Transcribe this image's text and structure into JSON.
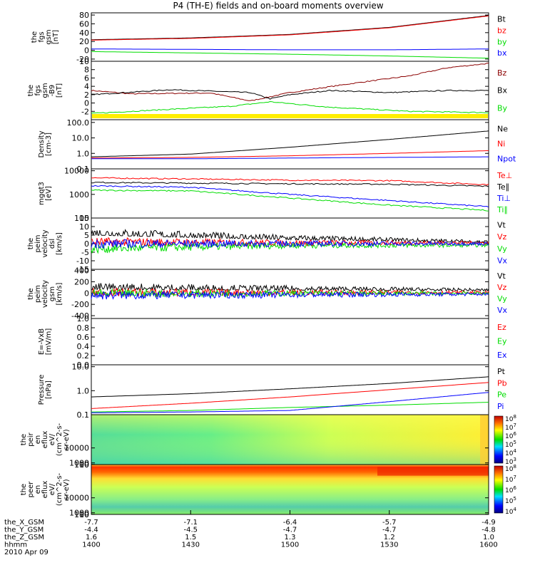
{
  "title": "P4 (TH-E) fields and on-board moments overview",
  "colors": {
    "black": "#000000",
    "red": "#ff0000",
    "darkred": "#8b0000",
    "green": "#00dd00",
    "blue": "#0000ff",
    "yellow": "#ffee00"
  },
  "chart_data": [
    {
      "type": "line",
      "id": "fgs",
      "ylabel": [
        "the",
        "fgs",
        "gsm",
        "[nT]"
      ],
      "ylim": [
        -25,
        85
      ],
      "ticks": [
        {
          "v": 80,
          "t": "80"
        },
        {
          "v": 60,
          "t": "60"
        },
        {
          "v": 40,
          "t": "40"
        },
        {
          "v": 20,
          "t": "20"
        },
        {
          "v": 0,
          "t": "0"
        },
        {
          "v": -20,
          "t": "-20"
        }
      ],
      "series": [
        {
          "name": "Bt",
          "color": "black",
          "values": [
            [
              0,
              24
            ],
            [
              0.25,
              28
            ],
            [
              0.5,
              36
            ],
            [
              0.75,
              52
            ],
            [
              1,
              79
            ]
          ]
        },
        {
          "name": "bz",
          "color": "red",
          "values": [
            [
              0,
              23
            ],
            [
              0.25,
              27
            ],
            [
              0.5,
              35
            ],
            [
              0.75,
              51
            ],
            [
              1,
              78
            ]
          ]
        },
        {
          "name": "by",
          "color": "green",
          "values": [
            [
              0,
              -3
            ],
            [
              0.25,
              -6
            ],
            [
              0.5,
              -9
            ],
            [
              0.75,
              -13
            ],
            [
              1,
              -18
            ]
          ]
        },
        {
          "name": "bx",
          "color": "blue",
          "values": [
            [
              0,
              3
            ],
            [
              0.25,
              2
            ],
            [
              0.5,
              1
            ],
            [
              0.75,
              1
            ],
            [
              1,
              3
            ]
          ]
        }
      ]
    },
    {
      "type": "line",
      "id": "fgs2",
      "ylabel": [
        "the",
        "fgs",
        "gsm",
        "-B9",
        "[nT]"
      ],
      "ylim": [
        -4,
        10
      ],
      "ticks": [
        {
          "v": 10,
          "t": "10"
        },
        {
          "v": 8,
          "t": "8"
        },
        {
          "v": 6,
          "t": "6"
        },
        {
          "v": 4,
          "t": "4"
        },
        {
          "v": 2,
          "t": "2"
        },
        {
          "v": 0,
          "t": "0"
        },
        {
          "v": -2,
          "t": "-2"
        }
      ],
      "series": [
        {
          "name": "Bz",
          "color": "darkred",
          "values": [
            [
              0,
              3
            ],
            [
              0.1,
              2.2
            ],
            [
              0.3,
              2.4
            ],
            [
              0.4,
              0.5
            ],
            [
              0.5,
              2.5
            ],
            [
              0.65,
              4.6
            ],
            [
              0.8,
              6.5
            ],
            [
              0.9,
              8.5
            ],
            [
              1,
              9.5
            ]
          ]
        },
        {
          "name": "Bx",
          "color": "black",
          "values": [
            [
              0,
              2
            ],
            [
              0.2,
              3.2
            ],
            [
              0.4,
              2.5
            ],
            [
              0.45,
              1
            ],
            [
              0.5,
              2
            ],
            [
              0.6,
              3
            ],
            [
              0.75,
              2.5
            ],
            [
              0.9,
              3
            ],
            [
              1,
              3
            ]
          ]
        },
        {
          "name": "By",
          "color": "green",
          "values": [
            [
              0,
              -2.5
            ],
            [
              0.2,
              -1.5
            ],
            [
              0.35,
              -0.8
            ],
            [
              0.45,
              0.3
            ],
            [
              0.6,
              -1
            ],
            [
              0.8,
              -2
            ],
            [
              1,
              -2.3
            ]
          ]
        }
      ],
      "bar_color": "yellow"
    },
    {
      "type": "line",
      "id": "dens",
      "log": true,
      "ylabel": [
        "Density",
        "[cm-3]"
      ],
      "ylim": [
        0.1,
        150
      ],
      "ticks": [
        {
          "v": 100,
          "t": "100.0"
        },
        {
          "v": 10,
          "t": "10.0"
        },
        {
          "v": 1,
          "t": "1.0"
        },
        {
          "v": 0.1,
          "t": "0.1"
        }
      ],
      "series": [
        {
          "name": "Ne",
          "color": "black",
          "values": [
            [
              0,
              0.6
            ],
            [
              0.25,
              0.9
            ],
            [
              0.5,
              2.5
            ],
            [
              0.75,
              8
            ],
            [
              1,
              28
            ]
          ]
        },
        {
          "name": "Ni",
          "color": "red",
          "values": [
            [
              0,
              0.5
            ],
            [
              0.25,
              0.55
            ],
            [
              0.5,
              0.7
            ],
            [
              0.75,
              1
            ],
            [
              1,
              1.5
            ]
          ]
        },
        {
          "name": "Npot",
          "color": "blue",
          "values": [
            [
              0,
              0.45
            ],
            [
              0.25,
              0.45
            ],
            [
              0.5,
              0.5
            ],
            [
              0.75,
              0.55
            ],
            [
              1,
              0.6
            ]
          ]
        }
      ]
    },
    {
      "type": "line",
      "id": "temp",
      "log": true,
      "ylabel": [
        "mgqt3",
        "[eV]"
      ],
      "ylim": [
        100,
        12000
      ],
      "ticks": [
        {
          "v": 10000,
          "t": "10000"
        },
        {
          "v": 1000,
          "t": "1000"
        },
        {
          "v": 100,
          "t": "100"
        }
      ],
      "series": [
        {
          "name": "Te⊥",
          "color": "red",
          "values": [
            [
              0,
              5000
            ],
            [
              0.25,
              4500
            ],
            [
              0.5,
              4000
            ],
            [
              0.75,
              3800
            ],
            [
              1,
              2600
            ]
          ]
        },
        {
          "name": "Te∥",
          "color": "black",
          "values": [
            [
              0,
              3200
            ],
            [
              0.25,
              3000
            ],
            [
              0.5,
              2800
            ],
            [
              0.75,
              2700
            ],
            [
              1,
              2200
            ]
          ]
        },
        {
          "name": "Ti⊥",
          "color": "blue",
          "values": [
            [
              0,
              2300
            ],
            [
              0.25,
              2000
            ],
            [
              0.5,
              1000
            ],
            [
              0.75,
              550
            ],
            [
              1,
              300
            ]
          ]
        },
        {
          "name": "Ti∥",
          "color": "green",
          "values": [
            [
              0,
              1500
            ],
            [
              0.25,
              1400
            ],
            [
              0.5,
              700
            ],
            [
              0.75,
              350
            ],
            [
              1,
              210
            ]
          ]
        }
      ]
    },
    {
      "type": "line",
      "id": "vdsl",
      "noisy": true,
      "ylabel": [
        "the",
        "peim",
        "velocity",
        "dsl",
        "[km/s]"
      ],
      "ylim": [
        -15,
        15
      ],
      "ticks": [
        {
          "v": 15,
          "t": "15"
        },
        {
          "v": 10,
          "t": "10"
        },
        {
          "v": 5,
          "t": "5"
        },
        {
          "v": 0,
          "t": "0"
        },
        {
          "v": -5,
          "t": "-5"
        },
        {
          "v": -10,
          "t": "-10"
        },
        {
          "v": -15,
          "t": "-15"
        }
      ],
      "series": [
        {
          "name": "Vt",
          "color": "black",
          "values": [
            [
              0,
              6
            ],
            [
              0.5,
              3
            ],
            [
              1,
              1
            ]
          ]
        },
        {
          "name": "Vz",
          "color": "red",
          "values": [
            [
              0,
              1
            ],
            [
              0.5,
              0.5
            ],
            [
              1,
              0.5
            ]
          ]
        },
        {
          "name": "Vy",
          "color": "green",
          "values": [
            [
              0,
              -3
            ],
            [
              0.5,
              -1
            ],
            [
              1,
              -1
            ]
          ]
        },
        {
          "name": "Vx",
          "color": "blue",
          "values": [
            [
              0,
              0
            ],
            [
              0.5,
              0
            ],
            [
              1,
              0
            ]
          ]
        }
      ]
    },
    {
      "type": "line",
      "id": "vgsm",
      "noisy": true,
      "ylabel": [
        "the",
        "peim",
        "velocity",
        "gsm",
        "[km/s]"
      ],
      "ylim": [
        -450,
        420
      ],
      "ticks": [
        {
          "v": 400,
          "t": "400"
        },
        {
          "v": 200,
          "t": "200"
        },
        {
          "v": 0,
          "t": "0"
        },
        {
          "v": -200,
          "t": "-200"
        },
        {
          "v": -400,
          "t": "-400"
        }
      ],
      "series": [
        {
          "name": "Vt",
          "color": "black",
          "values": [
            [
              0,
              90
            ],
            [
              0.5,
              70
            ],
            [
              1,
              50
            ]
          ]
        },
        {
          "name": "Vz",
          "color": "red",
          "values": [
            [
              0,
              10
            ],
            [
              0.5,
              10
            ],
            [
              1,
              10
            ]
          ]
        },
        {
          "name": "Vy",
          "color": "green",
          "values": [
            [
              0,
              -10
            ],
            [
              0.5,
              -5
            ],
            [
              1,
              -5
            ]
          ]
        },
        {
          "name": "Vx",
          "color": "blue",
          "values": [
            [
              0,
              -40
            ],
            [
              0.5,
              -30
            ],
            [
              1,
              -20
            ]
          ]
        }
      ]
    },
    {
      "type": "line",
      "id": "efield",
      "ylabel": [
        "E=-VxB",
        "[mV/m]"
      ],
      "ylim": [
        0,
        1
      ],
      "ticks": [
        {
          "v": 1,
          "t": "1.0"
        },
        {
          "v": 0.8,
          "t": "0.8"
        },
        {
          "v": 0.6,
          "t": "0.6"
        },
        {
          "v": 0.4,
          "t": "0.4"
        },
        {
          "v": 0.2,
          "t": "0.2"
        },
        {
          "v": 0,
          "t": "0.0"
        }
      ],
      "series": [
        {
          "name": "Ez",
          "color": "red",
          "values": []
        },
        {
          "name": "Ey",
          "color": "green",
          "values": []
        },
        {
          "name": "Ex",
          "color": "blue",
          "values": []
        }
      ]
    },
    {
      "type": "line",
      "id": "press",
      "log": true,
      "ylabel": [
        "Pressure",
        "[nPa]"
      ],
      "ylim": [
        0.1,
        12
      ],
      "ticks": [
        {
          "v": 10,
          "t": "10.0"
        },
        {
          "v": 1,
          "t": "1.0"
        },
        {
          "v": 0.1,
          "t": "0.1"
        }
      ],
      "series": [
        {
          "name": "Pt",
          "color": "black",
          "values": [
            [
              0,
              0.55
            ],
            [
              0.25,
              0.75
            ],
            [
              0.5,
              1.2
            ],
            [
              0.75,
              2
            ],
            [
              1,
              3.8
            ]
          ]
        },
        {
          "name": "Pb",
          "color": "red",
          "values": [
            [
              0,
              0.18
            ],
            [
              0.25,
              0.3
            ],
            [
              0.5,
              0.55
            ],
            [
              0.75,
              1.1
            ],
            [
              1,
              2.2
            ]
          ]
        },
        {
          "name": "Pe",
          "color": "green",
          "values": [
            [
              0,
              0.13
            ],
            [
              0.25,
              0.15
            ],
            [
              0.5,
              0.2
            ],
            [
              0.75,
              0.25
            ],
            [
              1,
              0.33
            ]
          ]
        },
        {
          "name": "Pi",
          "color": "blue",
          "values": [
            [
              0,
              0.12
            ],
            [
              0.25,
              0.13
            ],
            [
              0.5,
              0.15
            ],
            [
              0.75,
              0.35
            ],
            [
              1,
              0.85
            ]
          ]
        }
      ]
    },
    {
      "type": "heatmap",
      "id": "peir",
      "ylabel": [
        "the",
        "peir",
        "en",
        "eflux",
        "eV/",
        "(cm^2-s-",
        "sr-eV)"
      ],
      "ticks": [
        {
          "v": 10000,
          "t": "10000"
        },
        {
          "v": 1000,
          "t": "1000"
        },
        {
          "v": 100,
          "t": "100"
        },
        {
          "v": 10,
          "t": "10"
        }
      ],
      "ylim": [
        7,
        30000
      ],
      "cbar": [
        "10^8",
        "10^7",
        "10^6",
        "10^5",
        "10^4",
        "10^3"
      ]
    },
    {
      "type": "heatmap",
      "id": "peer",
      "ylabel": [
        "the",
        "peer",
        "en",
        "eflux",
        "eV/",
        "(cm^2-s-",
        "sr-eV)"
      ],
      "ticks": [
        {
          "v": 10000,
          "t": "10000"
        },
        {
          "v": 1000,
          "t": "1000"
        },
        {
          "v": 100,
          "t": "100"
        },
        {
          "v": 10,
          "t": "10"
        }
      ],
      "ylim": [
        7,
        30000
      ],
      "cbar": [
        "10^8",
        "10^7",
        "10^6",
        "10^5",
        "10^4"
      ]
    }
  ],
  "xaxis": {
    "rows": [
      {
        "label": "the_X_GSM",
        "values": [
          "-7.7",
          "-7.1",
          "-6.4",
          "-5.7",
          "-4.9"
        ]
      },
      {
        "label": "the_Y_GSM",
        "values": [
          "-4.4",
          "-4.5",
          "-4.7",
          "-4.7",
          "-4.8"
        ]
      },
      {
        "label": "the_Z_GSM",
        "values": [
          "1.6",
          "1.5",
          "1.3",
          "1.2",
          "1.0"
        ]
      },
      {
        "label": "hhmm",
        "values": [
          "1400",
          "1430",
          "1500",
          "1530",
          "1600"
        ]
      }
    ],
    "date": "2010 Apr 09"
  }
}
